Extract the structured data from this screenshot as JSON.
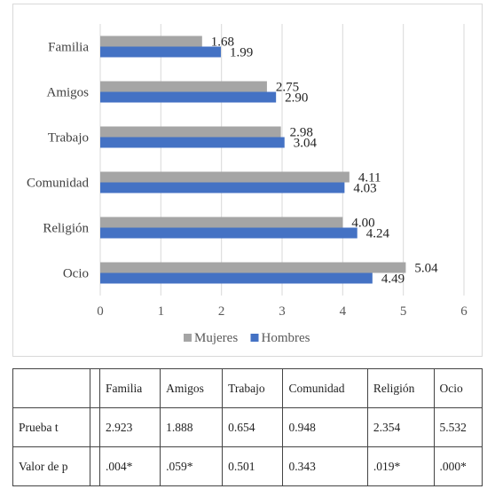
{
  "chart_data": {
    "type": "bar",
    "orientation": "horizontal",
    "categories": [
      "Familia",
      "Amigos",
      "Trabajo",
      "Comunidad",
      "Religión",
      "Ocio"
    ],
    "series": [
      {
        "name": "Mujeres",
        "color": "#a5a5a5",
        "values": [
          1.68,
          2.75,
          2.98,
          4.11,
          4.0,
          5.04
        ],
        "labels": [
          "1.68",
          "2.75",
          "2.98",
          "4.11",
          "4.00",
          "5.04"
        ]
      },
      {
        "name": "Hombres",
        "color": "#4472c4",
        "values": [
          1.99,
          2.9,
          3.04,
          4.03,
          4.24,
          4.49
        ],
        "labels": [
          "1.99",
          "2.90",
          "3.04",
          "4.03",
          "4.24",
          "4.49"
        ]
      }
    ],
    "xlim": [
      0,
      6
    ],
    "xticks": [
      "0",
      "1",
      "2",
      "3",
      "4",
      "5",
      "6"
    ],
    "grid": true,
    "legend": "bottom"
  },
  "table": {
    "headers": [
      "Familia",
      "Amigos",
      "Trabajo",
      "Comunidad",
      "Religión",
      "Ocio"
    ],
    "rows": [
      {
        "label": "Prueba t",
        "values": [
          "2.923",
          "1.888",
          "0.654",
          "0.948",
          "2.354",
          "5.532"
        ]
      },
      {
        "label": "Valor de p",
        "values": [
          ".004*",
          ".059*",
          "0.501",
          "0.343",
          ".019*",
          ".000*"
        ]
      }
    ]
  }
}
